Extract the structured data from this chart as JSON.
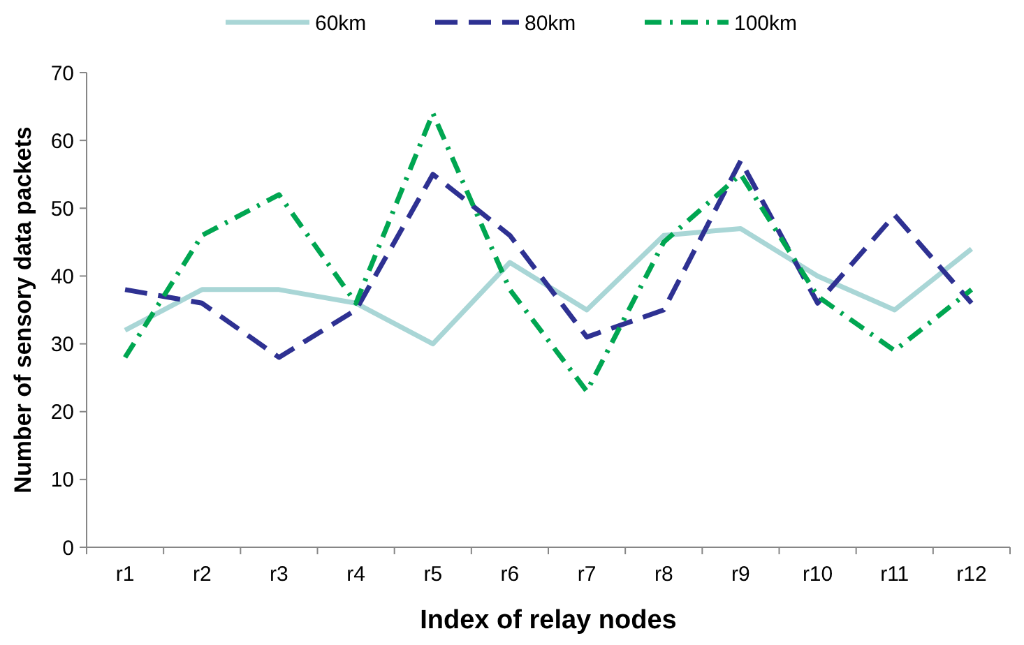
{
  "chart_data": {
    "type": "line",
    "xlabel": "Index of relay nodes",
    "ylabel": "Number of sensory data packets",
    "categories": [
      "r1",
      "r2",
      "r3",
      "r4",
      "r5",
      "r6",
      "r7",
      "r8",
      "r9",
      "r10",
      "r11",
      "r12"
    ],
    "ylim": [
      0,
      70
    ],
    "yticks": [
      0,
      10,
      20,
      30,
      40,
      50,
      60,
      70
    ],
    "grid": false,
    "legend": "top",
    "marker": "none",
    "series": [
      {
        "name": "60km",
        "color": "#a9d6d6",
        "line_style": "solid",
        "values": [
          32,
          38,
          38,
          36,
          30,
          42,
          35,
          46,
          47,
          40,
          35,
          44
        ]
      },
      {
        "name": "80km",
        "color": "#2e3192",
        "line_style": "dashed",
        "values": [
          38,
          36,
          28,
          35,
          55,
          46,
          31,
          35,
          57,
          36,
          49,
          36
        ]
      },
      {
        "name": "100km",
        "color": "#00a651",
        "line_style": "dashdot",
        "values": [
          28,
          46,
          52,
          36,
          64,
          38,
          23,
          45,
          55,
          37,
          29,
          38
        ]
      }
    ]
  }
}
